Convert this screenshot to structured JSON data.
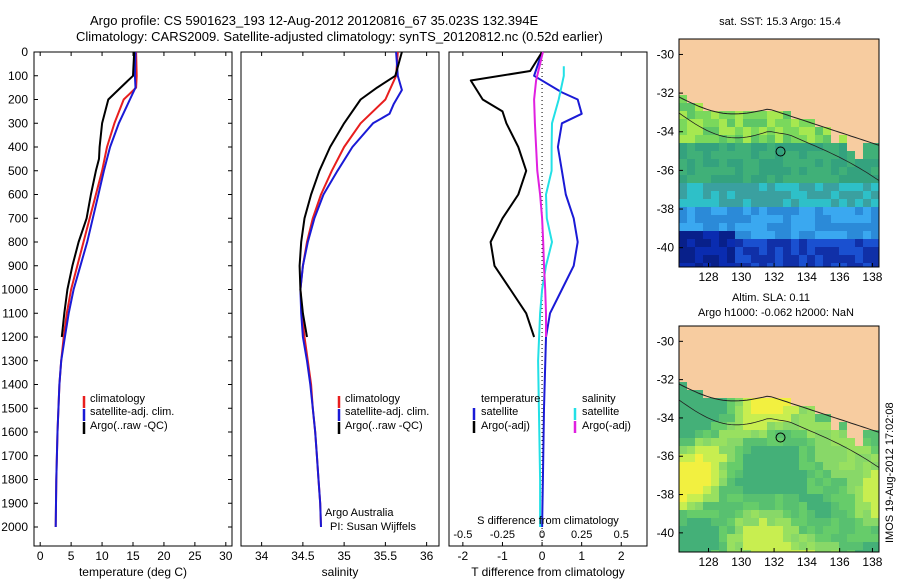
{
  "header": {
    "line1": "Argo profile: CS 5901623_193 12-Aug-2012 20120816_67 35.023S 132.394E",
    "line2": "Climatology: CARS2009. Satellite-adjusted climatology: synTS_20120812.nc (0.52d earlier)"
  },
  "side_stamp": "IMOS 19-Aug-2012 17:02:08",
  "colors": {
    "climatology": "#e81e1e",
    "satellite": "#1a1ad6",
    "argo": "#000000",
    "sal_satellite": "#22e0e6",
    "sal_argo": "#e020e0",
    "land": "#f7cca0"
  },
  "depth_axis": {
    "ticks": [
      "0",
      "100",
      "200",
      "300",
      "400",
      "500",
      "600",
      "700",
      "800",
      "900",
      "1000",
      "1100",
      "1200",
      "1300",
      "1400",
      "1500",
      "1600",
      "1700",
      "1800",
      "1900",
      "2000"
    ]
  },
  "chart_data": [
    {
      "type": "line",
      "xlabel": "temperature (deg C)",
      "ylim": [
        0,
        2080
      ],
      "xlim": [
        -1,
        31
      ],
      "xticks": [
        "0",
        "5",
        "10",
        "15",
        "20",
        "25",
        "30"
      ],
      "legend": [
        "climatology",
        "satellite-adj. clim.",
        "Argo(..raw -QC)"
      ],
      "series": [
        {
          "name": "climatology",
          "color": "red",
          "points": [
            [
              15.5,
              0
            ],
            [
              15.6,
              100
            ],
            [
              15.5,
              150
            ],
            [
              13.5,
              200
            ],
            [
              12.0,
              300
            ],
            [
              10.8,
              400
            ],
            [
              10.0,
              500
            ],
            [
              9.0,
              600
            ],
            [
              8.0,
              700
            ],
            [
              7.0,
              800
            ],
            [
              6.0,
              900
            ],
            [
              5.0,
              1000
            ],
            [
              4.3,
              1100
            ],
            [
              3.8,
              1200
            ],
            [
              3.4,
              1300
            ],
            [
              3.1,
              1400
            ],
            [
              2.8,
              1600
            ],
            [
              2.6,
              1800
            ],
            [
              2.5,
              2000
            ]
          ]
        },
        {
          "name": "satellite-adj. clim.",
          "color": "blue",
          "points": [
            [
              15.4,
              0
            ],
            [
              15.3,
              100
            ],
            [
              15.4,
              150
            ],
            [
              14.5,
              200
            ],
            [
              12.7,
              300
            ],
            [
              11.3,
              400
            ],
            [
              10.3,
              500
            ],
            [
              9.4,
              600
            ],
            [
              8.5,
              700
            ],
            [
              7.6,
              800
            ],
            [
              6.5,
              900
            ],
            [
              5.4,
              1000
            ],
            [
              4.6,
              1100
            ],
            [
              4.0,
              1200
            ],
            [
              3.4,
              1300
            ],
            [
              3.1,
              1400
            ],
            [
              2.8,
              1600
            ],
            [
              2.6,
              1800
            ],
            [
              2.5,
              2000
            ]
          ]
        },
        {
          "name": "Argo(..raw -QC)",
          "color": "black",
          "points": [
            [
              15.2,
              0
            ],
            [
              15.0,
              100
            ],
            [
              13.0,
              150
            ],
            [
              11.0,
              200
            ],
            [
              10.5,
              250
            ],
            [
              10.0,
              300
            ],
            [
              9.6,
              400
            ],
            [
              9.5,
              450
            ],
            [
              9.0,
              500
            ],
            [
              8.2,
              600
            ],
            [
              7.5,
              700
            ],
            [
              6.2,
              800
            ],
            [
              5.2,
              900
            ],
            [
              4.4,
              1000
            ],
            [
              3.9,
              1100
            ],
            [
              3.5,
              1200
            ]
          ]
        }
      ]
    },
    {
      "type": "line",
      "xlabel": "salinity",
      "ylim": [
        0,
        2080
      ],
      "xlim": [
        33.75,
        36.15
      ],
      "xticks": [
        "34",
        "34.5",
        "35",
        "35.5",
        "36"
      ],
      "legend": [
        "climatology",
        "satellite-adj. clim.",
        "Argo(..raw -QC)"
      ],
      "annotation": [
        "Argo Australia",
        "PI: Susan Wijffels"
      ],
      "series": [
        {
          "name": "climatology",
          "color": "red",
          "points": [
            [
              35.65,
              0
            ],
            [
              35.63,
              100
            ],
            [
              35.5,
              200
            ],
            [
              35.2,
              300
            ],
            [
              35.0,
              400
            ],
            [
              34.85,
              500
            ],
            [
              34.72,
              600
            ],
            [
              34.62,
              700
            ],
            [
              34.55,
              800
            ],
            [
              34.5,
              900
            ],
            [
              34.47,
              1000
            ],
            [
              34.49,
              1100
            ],
            [
              34.52,
              1200
            ],
            [
              34.56,
              1300
            ],
            [
              34.6,
              1400
            ],
            [
              34.62,
              1500
            ],
            [
              34.65,
              1600
            ],
            [
              34.67,
              1700
            ],
            [
              34.69,
              1800
            ],
            [
              34.71,
              1900
            ],
            [
              34.72,
              2000
            ]
          ]
        },
        {
          "name": "satellite-adj. clim.",
          "color": "blue",
          "points": [
            [
              35.63,
              0
            ],
            [
              35.65,
              100
            ],
            [
              35.7,
              160
            ],
            [
              35.6,
              220
            ],
            [
              35.55,
              260
            ],
            [
              35.35,
              300
            ],
            [
              35.1,
              400
            ],
            [
              34.92,
              500
            ],
            [
              34.75,
              600
            ],
            [
              34.64,
              700
            ],
            [
              34.56,
              800
            ],
            [
              34.5,
              900
            ],
            [
              34.47,
              1000
            ],
            [
              34.48,
              1100
            ],
            [
              34.5,
              1200
            ],
            [
              34.55,
              1300
            ],
            [
              34.59,
              1400
            ],
            [
              34.62,
              1500
            ],
            [
              34.65,
              1600
            ],
            [
              34.67,
              1700
            ],
            [
              34.69,
              1800
            ],
            [
              34.71,
              1900
            ],
            [
              34.72,
              2000
            ]
          ]
        },
        {
          "name": "Argo(..raw -QC)",
          "color": "black",
          "points": [
            [
              35.7,
              0
            ],
            [
              35.62,
              100
            ],
            [
              35.4,
              150
            ],
            [
              35.2,
              200
            ],
            [
              35.0,
              300
            ],
            [
              34.83,
              400
            ],
            [
              34.7,
              500
            ],
            [
              34.6,
              600
            ],
            [
              34.52,
              700
            ],
            [
              34.48,
              800
            ],
            [
              34.46,
              900
            ],
            [
              34.47,
              1000
            ],
            [
              34.5,
              1100
            ],
            [
              34.55,
              1200
            ]
          ]
        }
      ]
    },
    {
      "type": "line",
      "xlabel": "T difference from climatology",
      "top_axis_label": "S difference from climatology",
      "ylim": [
        0,
        2080
      ],
      "xlim": [
        -2.35,
        2.65
      ],
      "xticks": [
        "-2",
        "-1",
        "0",
        "1",
        "2"
      ],
      "s_ticks": [
        "-0.5",
        "-0.25",
        "0",
        "0.25",
        "0.5"
      ],
      "legend": [
        "temperature",
        "satellite",
        "Argo(-adj)",
        "salinity",
        "satellite",
        "Argo(-adj)"
      ],
      "series": [
        {
          "name": "temperature satellite",
          "color": "blue",
          "points": [
            [
              0.0,
              0
            ],
            [
              -0.2,
              100
            ],
            [
              0.5,
              170
            ],
            [
              0.9,
              200
            ],
            [
              1.0,
              260
            ],
            [
              0.5,
              300
            ],
            [
              0.4,
              400
            ],
            [
              0.5,
              500
            ],
            [
              0.6,
              600
            ],
            [
              0.8,
              700
            ],
            [
              0.9,
              800
            ],
            [
              0.8,
              900
            ],
            [
              0.5,
              1000
            ],
            [
              0.2,
              1100
            ],
            [
              0.1,
              1200
            ],
            [
              0.05,
              1500
            ],
            [
              0.02,
              1800
            ],
            [
              0.0,
              2000
            ]
          ]
        },
        {
          "name": "temperature Argo(-adj)",
          "color": "black",
          "points": [
            [
              0.0,
              0
            ],
            [
              -0.3,
              80
            ],
            [
              -1.8,
              120
            ],
            [
              -1.5,
              200
            ],
            [
              -1.0,
              250
            ],
            [
              -0.9,
              300
            ],
            [
              -0.6,
              400
            ],
            [
              -0.4,
              500
            ],
            [
              -0.6,
              600
            ],
            [
              -1.0,
              700
            ],
            [
              -1.3,
              800
            ],
            [
              -1.2,
              900
            ],
            [
              -0.8,
              1000
            ],
            [
              -0.4,
              1100
            ],
            [
              -0.2,
              1200
            ]
          ]
        },
        {
          "name": "salinity satellite",
          "color": "cyan",
          "points": [
            [
              0.55,
              60
            ],
            [
              0.55,
              100
            ],
            [
              0.42,
              200
            ],
            [
              0.25,
              300
            ],
            [
              0.24,
              400
            ],
            [
              0.24,
              500
            ],
            [
              0.1,
              600
            ],
            [
              0.12,
              700
            ],
            [
              0.25,
              800
            ],
            [
              0.1,
              900
            ],
            [
              0.0,
              1000
            ],
            [
              -0.05,
              1100
            ],
            [
              -0.1,
              1300
            ],
            [
              -0.08,
              1500
            ],
            [
              -0.05,
              1800
            ],
            [
              -0.05,
              2000
            ]
          ]
        },
        {
          "name": "salinity Argo(-adj)",
          "color": "magenta",
          "points": [
            [
              0.02,
              0
            ],
            [
              -0.15,
              120
            ],
            [
              -0.2,
              200
            ],
            [
              -0.18,
              300
            ],
            [
              -0.15,
              400
            ],
            [
              -0.12,
              500
            ],
            [
              -0.05,
              600
            ],
            [
              0.0,
              700
            ],
            [
              0.03,
              800
            ],
            [
              0.05,
              900
            ],
            [
              0.08,
              1000
            ],
            [
              0.1,
              1100
            ],
            [
              0.1,
              1200
            ]
          ]
        }
      ]
    },
    {
      "type": "heatmap",
      "title": "sat. SST: 15.3 Argo: 15.4",
      "xticks": [
        "128",
        "130",
        "132",
        "134",
        "136",
        "138"
      ],
      "yticks": [
        "-30",
        "-32",
        "-34",
        "-36",
        "-38",
        "-40"
      ],
      "marker": {
        "lon": 132.394,
        "lat": -35.023
      }
    },
    {
      "type": "heatmap",
      "title": "Altim. SLA: 0.11",
      "subtitle": "Argo h1000: -0.062 h2000: NaN",
      "xticks": [
        "128",
        "130",
        "132",
        "134",
        "136",
        "138"
      ],
      "yticks": [
        "-30",
        "-32",
        "-34",
        "-36",
        "-38",
        "-40"
      ],
      "marker": {
        "lon": 132.394,
        "lat": -35.023
      }
    }
  ]
}
